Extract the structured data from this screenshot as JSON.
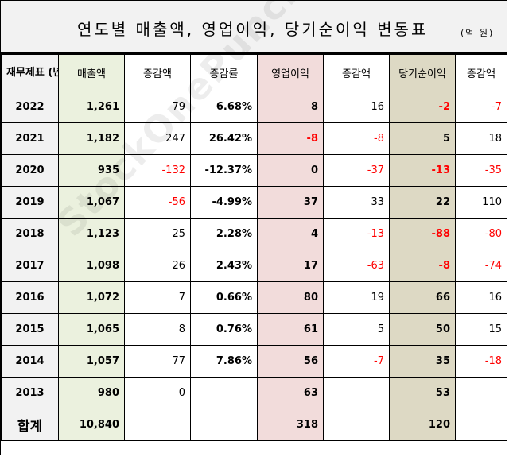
{
  "title": "연도별 매출액, 영업이익, 당기순이익 변동표",
  "unit": "(억 원)",
  "watermark": "StockOnePunch",
  "headers": {
    "year": "재무제표 (년도)",
    "sales": "매출액",
    "sales_change": "증감액",
    "sales_rate": "증감률",
    "op_income": "영업이익",
    "op_change": "증감액",
    "net_income": "당기순이익",
    "net_change": "증감액"
  },
  "rows": [
    {
      "year": "2022",
      "sales": "1,261",
      "sales_change": "79",
      "sales_rate": "6.68%",
      "op_income": "8",
      "op_change": "16",
      "net_income": "-2",
      "net_change": "-7"
    },
    {
      "year": "2021",
      "sales": "1,182",
      "sales_change": "247",
      "sales_rate": "26.42%",
      "op_income": "-8",
      "op_change": "-8",
      "net_income": "5",
      "net_change": "18"
    },
    {
      "year": "2020",
      "sales": "935",
      "sales_change": "-132",
      "sales_rate": "-12.37%",
      "op_income": "0",
      "op_change": "-37",
      "net_income": "-13",
      "net_change": "-35"
    },
    {
      "year": "2019",
      "sales": "1,067",
      "sales_change": "-56",
      "sales_rate": "-4.99%",
      "op_income": "37",
      "op_change": "33",
      "net_income": "22",
      "net_change": "110"
    },
    {
      "year": "2018",
      "sales": "1,123",
      "sales_change": "25",
      "sales_rate": "2.28%",
      "op_income": "4",
      "op_change": "-13",
      "net_income": "-88",
      "net_change": "-80"
    },
    {
      "year": "2017",
      "sales": "1,098",
      "sales_change": "26",
      "sales_rate": "2.43%",
      "op_income": "17",
      "op_change": "-63",
      "net_income": "-8",
      "net_change": "-74"
    },
    {
      "year": "2016",
      "sales": "1,072",
      "sales_change": "7",
      "sales_rate": "0.66%",
      "op_income": "80",
      "op_change": "19",
      "net_income": "66",
      "net_change": "16"
    },
    {
      "year": "2015",
      "sales": "1,065",
      "sales_change": "8",
      "sales_rate": "0.76%",
      "op_income": "61",
      "op_change": "5",
      "net_income": "50",
      "net_change": "15"
    },
    {
      "year": "2014",
      "sales": "1,057",
      "sales_change": "77",
      "sales_rate": "7.86%",
      "op_income": "56",
      "op_change": "-7",
      "net_income": "35",
      "net_change": "-18"
    },
    {
      "year": "2013",
      "sales": "980",
      "sales_change": "0",
      "sales_rate": "",
      "op_income": "63",
      "op_change": "",
      "net_income": "53",
      "net_change": ""
    }
  ],
  "total": {
    "label": "합계",
    "sales": "10,840",
    "op_income": "318",
    "net_income": "120"
  },
  "colors": {
    "header_gray": "#f2f2f2",
    "sales_green": "#ebf1de",
    "op_pink": "#f2dcdb",
    "net_tan": "#ddd9c4",
    "negative_red": "#ff0000"
  }
}
